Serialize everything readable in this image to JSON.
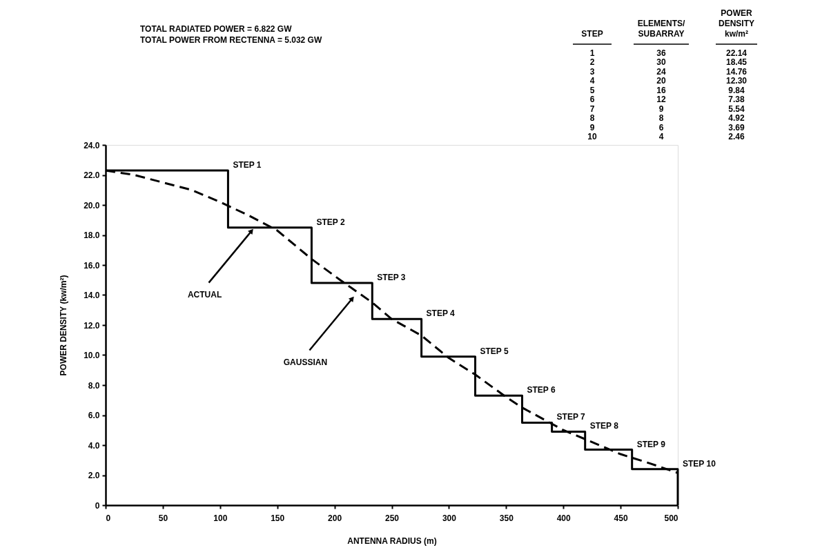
{
  "chart_data": {
    "type": "line",
    "xlabel": "ANTENNA RADIUS (m)",
    "ylabel": "POWER DENSITY  (kw/m²)",
    "xlim": [
      0,
      500
    ],
    "ylim": [
      0,
      24
    ],
    "xticks": [
      0,
      50,
      100,
      150,
      200,
      250,
      300,
      350,
      400,
      450,
      500
    ],
    "yticks": [
      {
        "value": 0,
        "label": "0"
      },
      {
        "value": 2,
        "label": "2.0"
      },
      {
        "value": 4,
        "label": "4.0"
      },
      {
        "value": 6,
        "label": "6.0"
      },
      {
        "value": 8,
        "label": "8.0"
      },
      {
        "value": 10,
        "label": "10.0"
      },
      {
        "value": 12,
        "label": "12.0"
      },
      {
        "value": 14,
        "label": "14.0"
      },
      {
        "value": 16,
        "label": "16.0"
      },
      {
        "value": 18,
        "label": "18.0"
      },
      {
        "value": 20,
        "label": "20.0"
      },
      {
        "value": 22,
        "label": "22.0"
      },
      {
        "value": 24,
        "label": "24.0"
      }
    ],
    "grid": false,
    "series": [
      {
        "type": "step",
        "color": "#000000",
        "line_style": "solid",
        "x": [
          0,
          107,
          180,
          233,
          276,
          323,
          364,
          390,
          419,
          460,
          500,
          500
        ],
        "values": [
          22.3,
          18.5,
          14.8,
          12.4,
          9.9,
          7.3,
          5.5,
          4.9,
          3.7,
          2.4,
          2.4,
          0
        ]
      },
      {
        "color": "#000000",
        "line_style": "dashed",
        "x": [
          0,
          25,
          50,
          75,
          100,
          125,
          150,
          180,
          205,
          233,
          250,
          276,
          300,
          323,
          350,
          364,
          400,
          419,
          450,
          475,
          500
        ],
        "values": [
          22.3,
          22.0,
          21.5,
          21.0,
          20.2,
          19.3,
          18.3,
          16.4,
          15.0,
          13.5,
          12.4,
          11.3,
          9.8,
          8.7,
          7.2,
          6.5,
          5.0,
          4.4,
          3.4,
          2.8,
          2.15
        ]
      }
    ],
    "annotations": [
      "TOTAL RADIATED POWER       = 6.822 GW",
      "TOTAL POWER FROM RECTENNA  = 5.032 GW",
      {
        "text": "STEP 1",
        "x": 107,
        "y": 22.3
      },
      {
        "text": "STEP 2",
        "x": 180,
        "y": 18.5
      },
      {
        "text": "STEP 3",
        "x": 233,
        "y": 14.8
      },
      {
        "text": "STEP 4",
        "x": 276,
        "y": 12.4
      },
      {
        "text": "STEP 5",
        "x": 323,
        "y": 9.9
      },
      {
        "text": "STEP 6",
        "x": 364,
        "y": 7.3
      },
      {
        "text": "STEP 7",
        "x": 390,
        "y": 5.5
      },
      {
        "text": "STEP 8",
        "x": 419,
        "y": 4.9
      },
      {
        "text": "STEP 9",
        "x": 460,
        "y": 3.7
      },
      {
        "text": "STEP 10",
        "x": 500,
        "y": 2.4
      },
      {
        "text": "ACTUAL",
        "x": 130,
        "y": 18.5
      },
      {
        "text": "GAUSSIAN",
        "x": 218,
        "y": 14.0
      },
      "STEP",
      "ELEMENTS/\nSUBARRAY",
      "POWER\nDENSITY\nkw/m²",
      "1",
      "36",
      "22.14",
      "2",
      "30",
      "18.45",
      "3",
      "24",
      "14.76",
      "4",
      "20",
      "12.30",
      "5",
      "16",
      "9.84",
      "6",
      "12",
      "7.38",
      "7",
      "9",
      "5.54",
      "8",
      "8",
      "4.92",
      "9",
      "6",
      "3.69",
      "10",
      "4",
      "2.46"
    ]
  }
}
